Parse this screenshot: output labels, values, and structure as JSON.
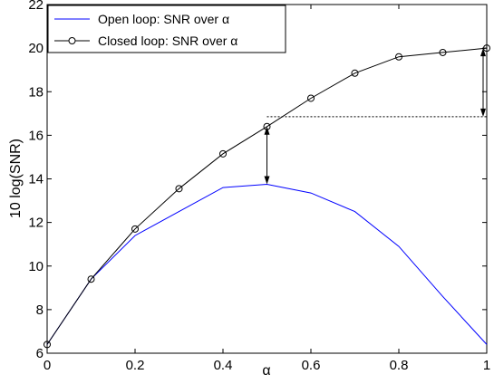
{
  "chart_data": {
    "type": "line",
    "title": "",
    "xlabel": "α",
    "ylabel": "10 log(SNR)",
    "xlim": [
      0,
      1
    ],
    "ylim": [
      6,
      22
    ],
    "x_ticks": [
      0,
      0.2,
      0.4,
      0.6,
      0.8,
      1
    ],
    "x_tick_labels": [
      "0",
      "0.2",
      "0.4",
      "0.6",
      "0.8",
      "1"
    ],
    "y_ticks": [
      6,
      8,
      10,
      12,
      14,
      16,
      18,
      20,
      22
    ],
    "y_tick_labels": [
      "6",
      "8",
      "10",
      "12",
      "14",
      "16",
      "18",
      "20",
      "22"
    ],
    "grid": false,
    "legend_position": "top-left",
    "series": [
      {
        "name": "Open loop: SNR over α",
        "color": "#0000ff",
        "marker": "none",
        "x": [
          0,
          0.1,
          0.2,
          0.3,
          0.4,
          0.5,
          0.6,
          0.7,
          0.8,
          0.9,
          1.0
        ],
        "y": [
          6.4,
          9.4,
          11.4,
          12.5,
          13.6,
          13.75,
          13.35,
          12.5,
          10.9,
          8.6,
          6.4
        ]
      },
      {
        "name": "Closed loop: SNR over α",
        "color": "#000000",
        "marker": "circle",
        "x": [
          0,
          0.1,
          0.2,
          0.3,
          0.4,
          0.5,
          0.6,
          0.7,
          0.8,
          0.9,
          1.0
        ],
        "y": [
          6.4,
          9.4,
          11.7,
          13.55,
          15.15,
          16.4,
          17.7,
          18.85,
          19.6,
          19.8,
          20.0
        ]
      }
    ],
    "annotations": {
      "reference_line": {
        "y": 16.85,
        "x_from": 0.5,
        "x_to": 1.0,
        "style": "dashed"
      },
      "arrows": [
        {
          "x": 0.5,
          "from_y": 16.4,
          "to_y": 13.75
        },
        {
          "x": 1.0,
          "from_y": 20.0,
          "to_y": 16.85
        }
      ]
    }
  }
}
